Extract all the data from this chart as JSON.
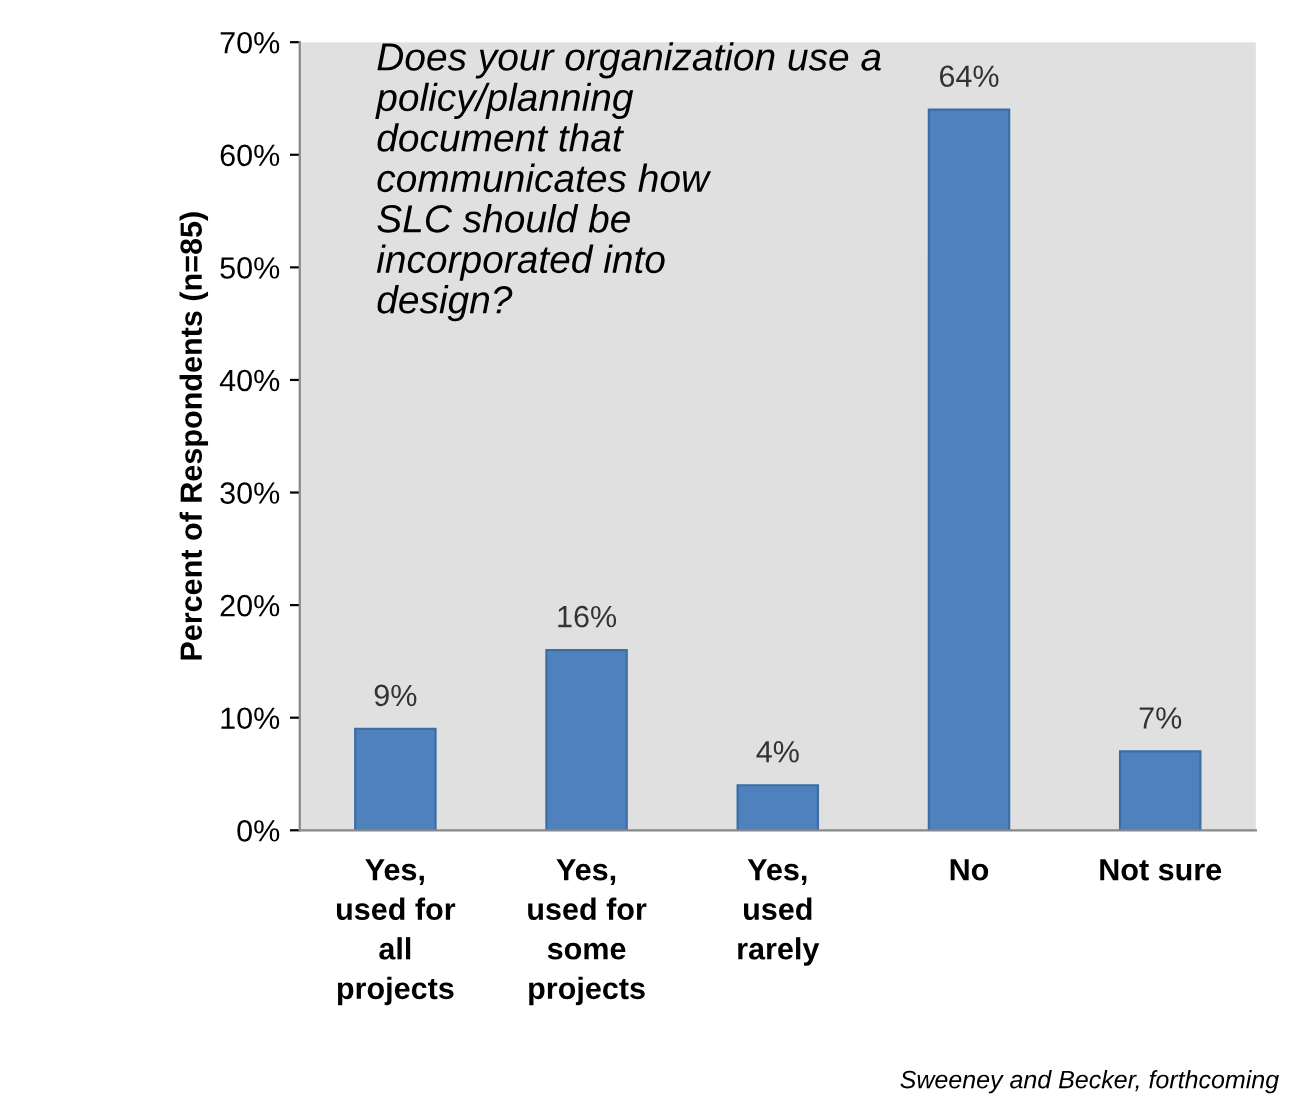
{
  "chart_data": {
    "type": "bar",
    "title": "Does your organization use a\npolicy/planning\ndocument that\ncommunicates how\nSLC should be\nincorporated into\ndesign?",
    "ylabel": "Percent of Respondents (n=85)",
    "categories": [
      "Yes,\nused for\nall\nprojects",
      "Yes,\nused for\nsome\nprojects",
      "Yes,\nused\nrarely",
      "No",
      "Not sure"
    ],
    "values": [
      9,
      16,
      4,
      64,
      7
    ],
    "value_labels": [
      "9%",
      "16%",
      "4%",
      "64%",
      "7%"
    ],
    "color": "#4f81bd",
    "ylim": [
      0,
      70
    ],
    "yticks": [
      {
        "value": 0,
        "label": "0%"
      },
      {
        "value": 10,
        "label": "10%"
      },
      {
        "value": 20,
        "label": "20%"
      },
      {
        "value": 30,
        "label": "30%"
      },
      {
        "value": 40,
        "label": "40%"
      },
      {
        "value": 50,
        "label": "50%"
      },
      {
        "value": 60,
        "label": "60%"
      },
      {
        "value": 70,
        "label": "70%"
      }
    ],
    "annotations": [
      "Sweeney and Becker, forthcoming"
    ]
  }
}
